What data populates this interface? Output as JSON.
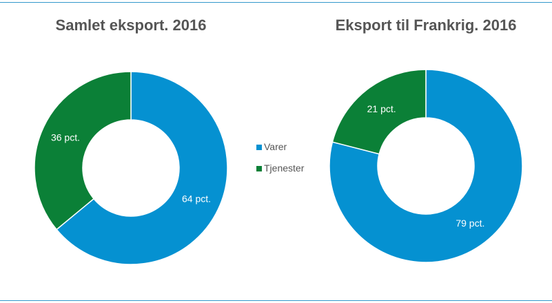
{
  "colors": {
    "varer": "#0591d1",
    "tjenester": "#0b8037",
    "rule": "#3399cc",
    "text": "#555555"
  },
  "legend": [
    {
      "label": "Varer",
      "color": "#0591d1"
    },
    {
      "label": "Tjenester",
      "color": "#0b8037"
    }
  ],
  "chart_data": [
    {
      "type": "pie",
      "subtype": "donut",
      "title": "Samlet eksport. 2016",
      "categories": [
        "Varer",
        "Tjenester"
      ],
      "values": [
        64,
        36
      ],
      "labels": [
        "64 pct.",
        "36 pct."
      ]
    },
    {
      "type": "pie",
      "subtype": "donut",
      "title": "Eksport til Frankrig. 2016",
      "categories": [
        "Varer",
        "Tjenester"
      ],
      "values": [
        79,
        21
      ],
      "labels": [
        "79 pct.",
        "21 pct."
      ]
    }
  ]
}
